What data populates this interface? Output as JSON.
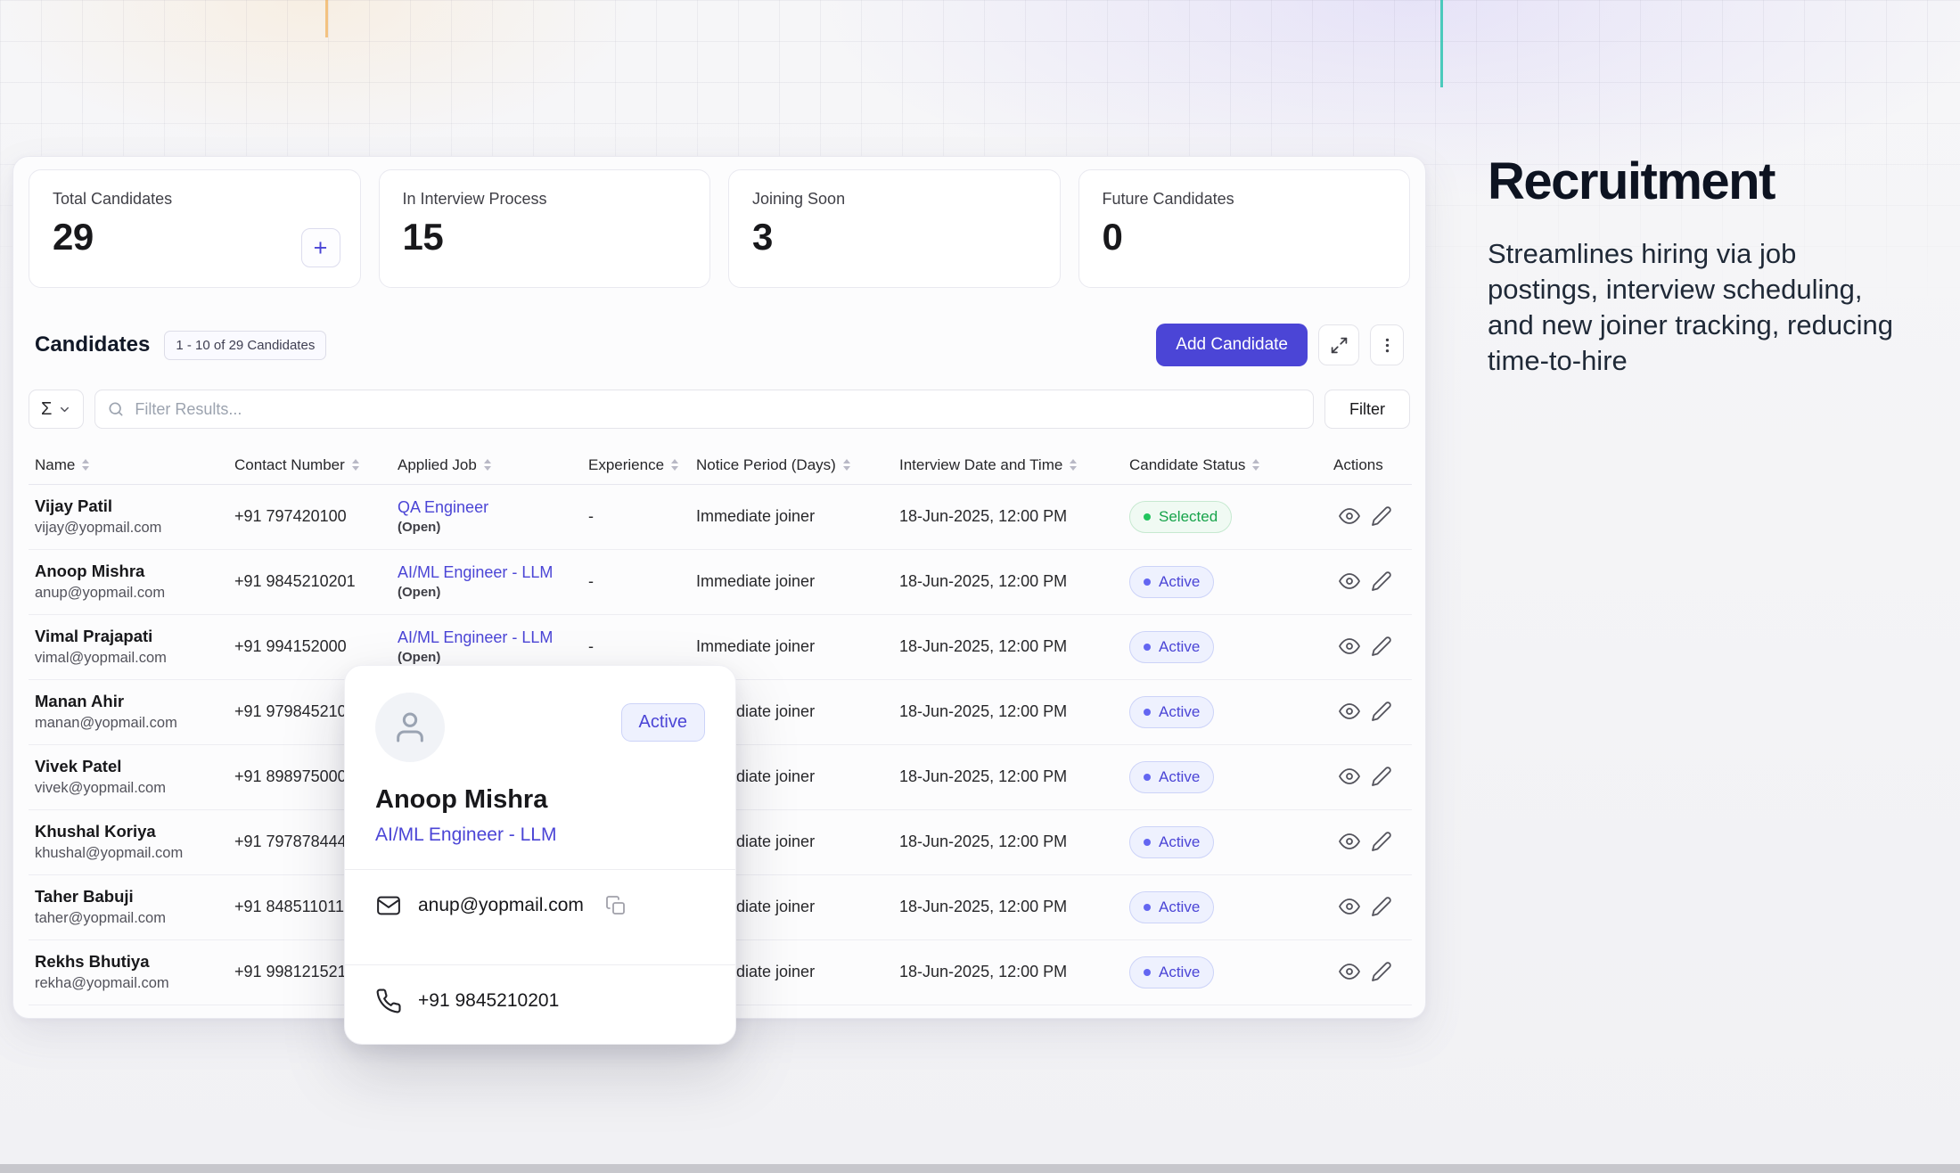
{
  "page": {
    "heading": "Recruitment",
    "description": "Streamlines hiring via job postings, interview scheduling, and new joiner tracking, reducing time-to-hire"
  },
  "stats_add_label": "+",
  "stats": [
    {
      "label": "Total Candidates",
      "value": "29"
    },
    {
      "label": "In Interview Process",
      "value": "15"
    },
    {
      "label": "Joining Soon",
      "value": "3"
    },
    {
      "label": "Future Candidates",
      "value": "0"
    }
  ],
  "candidates_section": {
    "title": "Candidates",
    "count_badge": "1 - 10 of 29 Candidates",
    "add_button": "Add Candidate",
    "aggregate_symbol": "Σ",
    "filter_placeholder": "Filter Results...",
    "filter_button": "Filter"
  },
  "table": {
    "columns": [
      {
        "label": "Name",
        "sortable": true
      },
      {
        "label": "Contact Number",
        "sortable": true
      },
      {
        "label": "Applied Job",
        "sortable": true
      },
      {
        "label": "Experience",
        "sortable": true
      },
      {
        "label": "Notice Period (Days)",
        "sortable": true
      },
      {
        "label": "Interview Date and Time",
        "sortable": true
      },
      {
        "label": "Candidate Status",
        "sortable": true
      },
      {
        "label": "Actions",
        "sortable": false
      }
    ],
    "rows": [
      {
        "name": "Vijay Patil",
        "email": "vijay@yopmail.com",
        "phone": "+91 797420100",
        "job": "QA Engineer",
        "job_note": "(Open)",
        "experience": "-",
        "notice": "Immediate joiner",
        "interview": "18-Jun-2025, 12:00 PM",
        "status": "Selected",
        "status_type": "selected"
      },
      {
        "name": "Anoop Mishra",
        "email": "anup@yopmail.com",
        "phone": "+91 9845210201",
        "job": "AI/ML Engineer - LLM",
        "job_note": "(Open)",
        "experience": "-",
        "notice": "Immediate joiner",
        "interview": "18-Jun-2025, 12:00 PM",
        "status": "Active",
        "status_type": "active"
      },
      {
        "name": "Vimal Prajapati",
        "email": "vimal@yopmail.com",
        "phone": "+91 994152000",
        "job": "AI/ML Engineer - LLM",
        "job_note": "(Open)",
        "experience": "-",
        "notice": "Immediate joiner",
        "interview": "18-Jun-2025, 12:00 PM",
        "status": "Active",
        "status_type": "active"
      },
      {
        "name": "Manan Ahir",
        "email": "manan@yopmail.com",
        "phone": "+91 979845210",
        "job": "",
        "job_note": "",
        "experience": "",
        "notice": "Immediate joiner",
        "interview": "18-Jun-2025, 12:00 PM",
        "status": "Active",
        "status_type": "active"
      },
      {
        "name": "Vivek Patel",
        "email": "vivek@yopmail.com",
        "phone": "+91 898975000",
        "job": "",
        "job_note": "",
        "experience": "",
        "notice": "Immediate joiner",
        "interview": "18-Jun-2025, 12:00 PM",
        "status": "Active",
        "status_type": "active"
      },
      {
        "name": "Khushal Koriya",
        "email": "khushal@yopmail.com",
        "phone": "+91 797878444",
        "job": "",
        "job_note": "",
        "experience": "",
        "notice": "Immediate joiner",
        "interview": "18-Jun-2025, 12:00 PM",
        "status": "Active",
        "status_type": "active"
      },
      {
        "name": "Taher Babuji",
        "email": "taher@yopmail.com",
        "phone": "+91 8485110112",
        "job": "",
        "job_note": "",
        "experience": "",
        "notice": "Immediate joiner",
        "interview": "18-Jun-2025, 12:00 PM",
        "status": "Active",
        "status_type": "active"
      },
      {
        "name": "Rekhs Bhutiya",
        "email": "rekha@yopmail.com",
        "phone": "+91 998121521",
        "job": "",
        "job_note": "",
        "experience": "",
        "notice": "Immediate joiner",
        "interview": "18-Jun-2025, 12:00 PM",
        "status": "Active",
        "status_type": "active"
      }
    ]
  },
  "popup": {
    "name": "Anoop Mishra",
    "role": "AI/ML Engineer - LLM",
    "status": "Active",
    "email": "anup@yopmail.com",
    "phone": "+91 9845210201"
  },
  "colors": {
    "accent": "#4b45d6",
    "accent_soft": "#eef1fe",
    "accent_border": "#ccd3f8",
    "accent_dot": "#6366f1",
    "green": "#16a34a",
    "green_soft": "#f0faf3",
    "green_border": "#c6e9d0",
    "green_dot": "#22c55e"
  }
}
